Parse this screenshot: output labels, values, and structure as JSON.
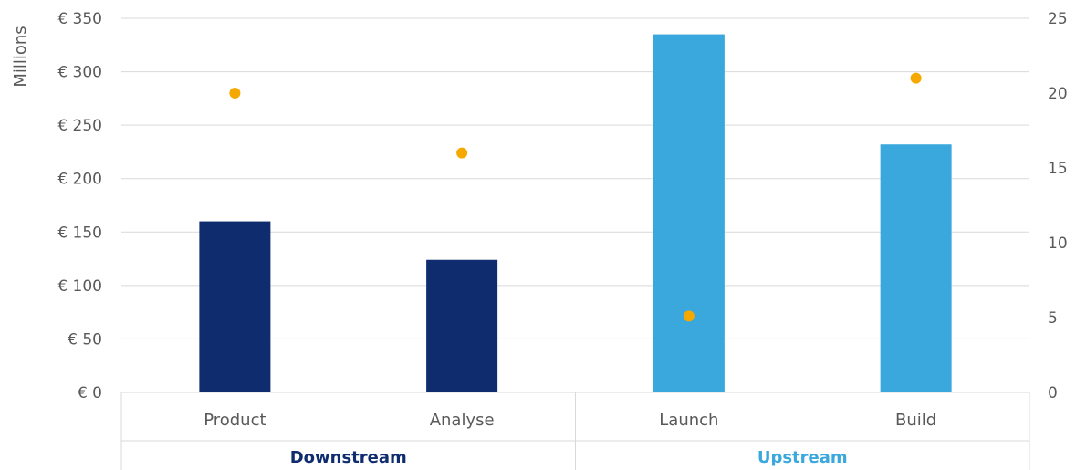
{
  "chart_data": {
    "type": "bar",
    "categories": [
      "Product",
      "Analyse",
      "Launch",
      "Build"
    ],
    "groups": [
      {
        "label": "Downstream",
        "categories": [
          "Product",
          "Analyse"
        ],
        "color": "#0f2d6e"
      },
      {
        "label": "Upstream",
        "categories": [
          "Launch",
          "Build"
        ],
        "color": "#3aa8dc"
      }
    ],
    "series": [
      {
        "type": "bar",
        "axis": "left",
        "values": [
          160,
          124,
          335,
          232
        ],
        "colors": [
          "#0f2d6e",
          "#0f2d6e",
          "#3aa8dc",
          "#3aa8dc"
        ]
      },
      {
        "type": "scatter",
        "axis": "right",
        "values": [
          20,
          16,
          5.1,
          21
        ],
        "color": "#f5a800"
      }
    ],
    "ylabel": "Millions",
    "ylim": [
      0,
      350
    ],
    "yticks": [
      0,
      50,
      100,
      150,
      200,
      250,
      300,
      350
    ],
    "ytick_labels": [
      "€ 0",
      "€ 50",
      "€ 100",
      "€ 150",
      "€ 200",
      "€ 250",
      "€ 300",
      "€ 350"
    ],
    "y2lim": [
      0,
      25
    ],
    "y2ticks": [
      0,
      5,
      10,
      15,
      20,
      25
    ],
    "y2tick_labels": [
      "0",
      "5",
      "10",
      "15",
      "20",
      "25"
    ],
    "grid": true,
    "legend": "none"
  }
}
